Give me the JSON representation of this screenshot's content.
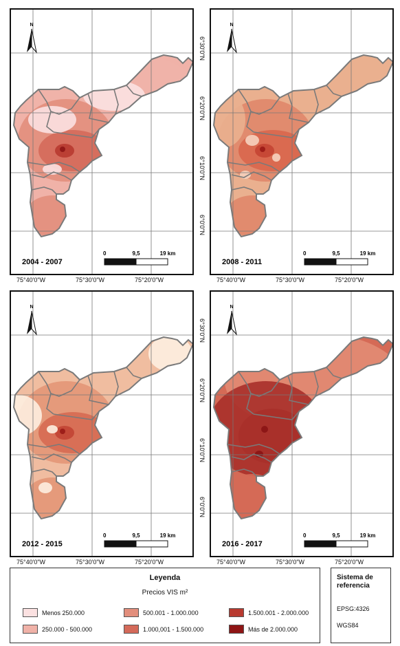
{
  "panels": [
    {
      "period": "2004 - 2007",
      "palette": [
        "#fbe1e1",
        "#f0b2a8",
        "#e28e7c",
        "#d46a5a",
        "#b83a30",
        "#8e1515"
      ]
    },
    {
      "period": "2008 - 2011",
      "palette": [
        "#f6d3bf",
        "#eab08f",
        "#e0876a",
        "#d9664c",
        "#c44533",
        "#9a1a16"
      ]
    },
    {
      "period": "2012 - 2015",
      "palette": [
        "#fdeee0",
        "#f0bca0",
        "#e39677",
        "#d66a52",
        "#c24434",
        "#9a1a16"
      ]
    },
    {
      "period": "2016 - 2017",
      "palette": [
        "#f3c3b0",
        "#e28c74",
        "#d56a56",
        "#bf4b3a",
        "#a9302a",
        "#8a1414"
      ]
    }
  ],
  "coords": {
    "lon": [
      "75°40'0\"W",
      "75°30'0\"W",
      "75°20'0\"W"
    ],
    "lat": [
      "6°30'0\"N",
      "6°20'0\"N",
      "6°10'0\"N",
      "6°0'0\"N"
    ]
  },
  "scale": {
    "labels": [
      "0",
      "9,5",
      "19 km"
    ]
  },
  "north_label": "N",
  "legend": {
    "title": "Leyenda",
    "subtitle": "Precios VIS m²",
    "items": [
      {
        "label": "Menos 250.000",
        "color": "#fbe1e1"
      },
      {
        "label": "250.000 - 500.000",
        "color": "#f0b2a8"
      },
      {
        "label": "500.001 - 1.000.000",
        "color": "#e28e7c"
      },
      {
        "label": "1.000,001 - 1.500.000",
        "color": "#d46a5a"
      },
      {
        "label": "1.500.001 - 2.000.000",
        "color": "#b83a30"
      },
      {
        "label": "Más de 2.000.000",
        "color": "#8e1515"
      }
    ]
  },
  "reference": {
    "title": "Sistema de referencia",
    "items": [
      "EPSG:4326",
      "WGS84"
    ]
  }
}
